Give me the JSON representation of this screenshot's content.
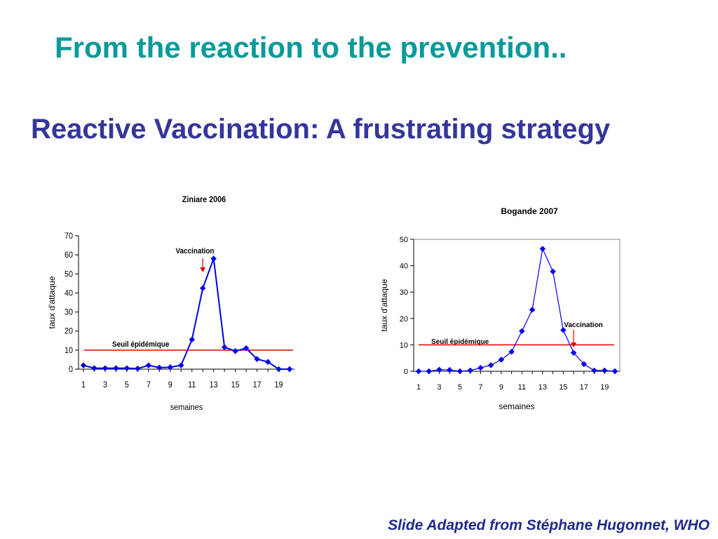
{
  "slide": {
    "title": "From the reaction to the prevention..",
    "subtitle": "Reactive Vaccination: A frustrating strategy",
    "credit": "Slide Adapted from Stéphane Hugonnet, WHO"
  },
  "colors": {
    "title": "#0a9a9a",
    "subtitle": "#35369a",
    "credit": "#1f2a8a",
    "series": "#0000ee",
    "threshold": "#e00000",
    "arrow": "#e00000"
  },
  "chart_data": [
    {
      "type": "line",
      "title": "Ziniare 2006",
      "xlabel": "semaines",
      "ylabel": "taux d'attaque",
      "ylim": [
        0,
        70
      ],
      "yticks": [
        0,
        10,
        20,
        30,
        40,
        50,
        60,
        70
      ],
      "xticks": [
        "1",
        "3",
        "5",
        "7",
        "9",
        "11",
        "13",
        "15",
        "17",
        "19"
      ],
      "x": [
        1,
        2,
        3,
        4,
        5,
        6,
        7,
        8,
        9,
        10,
        11,
        12,
        13,
        14,
        15,
        16,
        17,
        18,
        19,
        20
      ],
      "series": [
        {
          "values": [
            2,
            0.5,
            0.5,
            0.5,
            0.5,
            0.3,
            2,
            0.8,
            1,
            2,
            15.5,
            42.5,
            58,
            11.5,
            9.5,
            11,
            5.3,
            3.8,
            0,
            0
          ]
        }
      ],
      "threshold": {
        "label": "Seuil épidémique",
        "value": 10
      },
      "annotation": {
        "label": "Vaccination",
        "x": 12
      },
      "grid": false,
      "plot_border": false
    },
    {
      "type": "line",
      "title": "Bogande 2007",
      "xlabel": "semaines",
      "ylabel": "taux d'attaque",
      "ylim": [
        0,
        50
      ],
      "yticks": [
        0,
        10,
        20,
        30,
        40,
        50
      ],
      "xticks": [
        "1",
        "3",
        "5",
        "7",
        "9",
        "11",
        "13",
        "15",
        "17",
        "19"
      ],
      "x": [
        1,
        2,
        3,
        4,
        5,
        6,
        7,
        8,
        9,
        10,
        11,
        12,
        13,
        14,
        15,
        16,
        17,
        18,
        19,
        20
      ],
      "series": [
        {
          "values": [
            0,
            0,
            0.6,
            0.5,
            0,
            0.3,
            1.3,
            2.3,
            4.4,
            7.4,
            15.2,
            23.3,
            46.4,
            37.8,
            15.6,
            7,
            2.7,
            0.3,
            0.3,
            0
          ]
        }
      ],
      "threshold": {
        "label": "Seuil épidémique",
        "value": 10
      },
      "annotation": {
        "label": "Vaccination",
        "x": 16
      },
      "grid": false,
      "plot_border": true
    }
  ]
}
